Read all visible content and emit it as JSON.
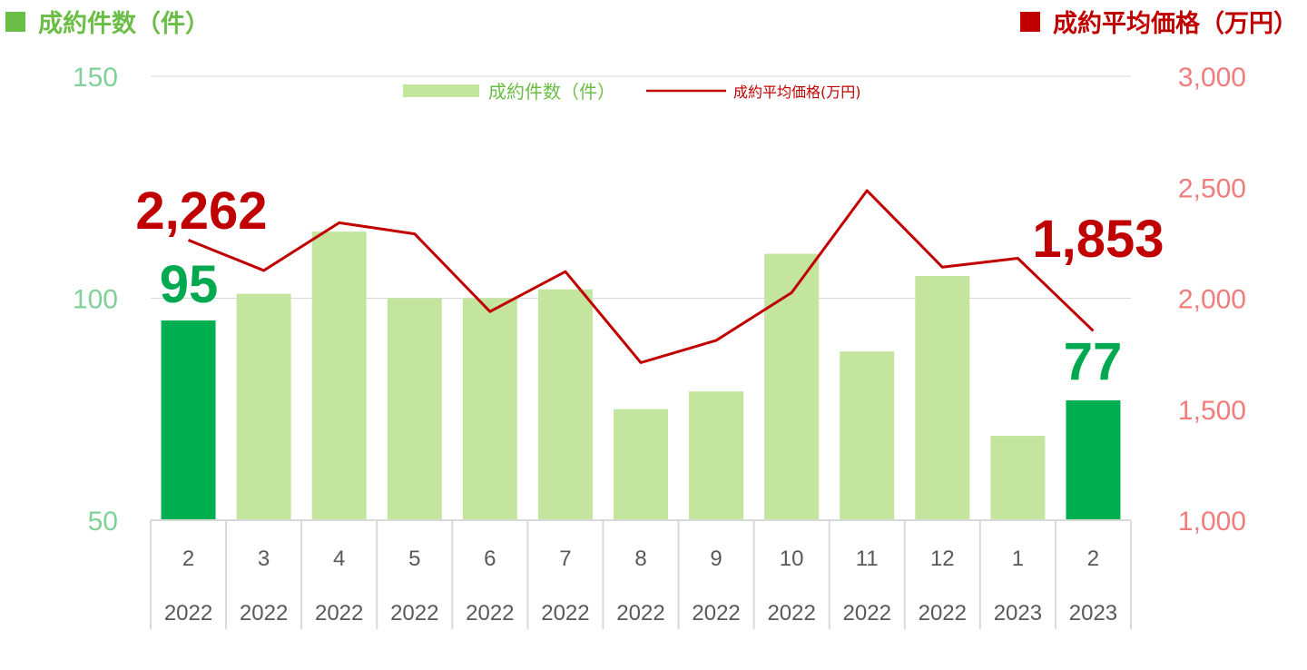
{
  "header": {
    "left_title": "成約件数（件）",
    "right_title": "成約平均価格（万円）"
  },
  "colors": {
    "bar": "#c3e59e",
    "bar_highlight": "#00b050",
    "line": "#c00000",
    "left_axis_text": "#7fd197",
    "right_axis_text": "#f07c7c",
    "left_header": "#6abd45",
    "grid": "#d9d9d9"
  },
  "chart_data": {
    "type": "bar",
    "categories": [
      {
        "month": "2",
        "year": "2022"
      },
      {
        "month": "3",
        "year": "2022"
      },
      {
        "month": "4",
        "year": "2022"
      },
      {
        "month": "5",
        "year": "2022"
      },
      {
        "month": "6",
        "year": "2022"
      },
      {
        "month": "7",
        "year": "2022"
      },
      {
        "month": "8",
        "year": "2022"
      },
      {
        "month": "9",
        "year": "2022"
      },
      {
        "month": "10",
        "year": "2022"
      },
      {
        "month": "11",
        "year": "2022"
      },
      {
        "month": "12",
        "year": "2022"
      },
      {
        "month": "1",
        "year": "2023"
      },
      {
        "month": "2",
        "year": "2023"
      }
    ],
    "series": [
      {
        "name": "成約件数（件）",
        "kind": "bar",
        "axis": "left",
        "values": [
          95,
          101,
          115,
          100,
          100,
          102,
          75,
          79,
          110,
          88,
          105,
          69,
          77
        ],
        "highlight_indices": [
          0,
          12
        ]
      },
      {
        "name": "成約平均価格(万円)",
        "kind": "line",
        "axis": "right",
        "values": [
          2262,
          2125,
          2340,
          2290,
          1940,
          2120,
          1710,
          1810,
          2025,
          2485,
          2140,
          2180,
          1853
        ]
      }
    ],
    "left_axis": {
      "ylim": [
        50,
        150
      ],
      "ticks": [
        "50",
        "100",
        "150"
      ],
      "tick_values": [
        50,
        100,
        150
      ]
    },
    "right_axis": {
      "ylim": [
        1000,
        3000
      ],
      "ticks": [
        "1,000",
        "1,500",
        "2,000",
        "2,500",
        "3,000"
      ],
      "tick_values": [
        1000,
        1500,
        2000,
        2500,
        3000
      ]
    },
    "grid": {
      "horizontal_at": [
        100,
        150
      ]
    },
    "legend": {
      "position": "top-center"
    },
    "annotations": [
      {
        "series": 0,
        "index": 0,
        "text": "95"
      },
      {
        "series": 0,
        "index": 12,
        "text": "77"
      },
      {
        "series": 1,
        "index": 0,
        "text": "2,262"
      },
      {
        "series": 1,
        "index": 12,
        "text": "1,853"
      }
    ]
  }
}
